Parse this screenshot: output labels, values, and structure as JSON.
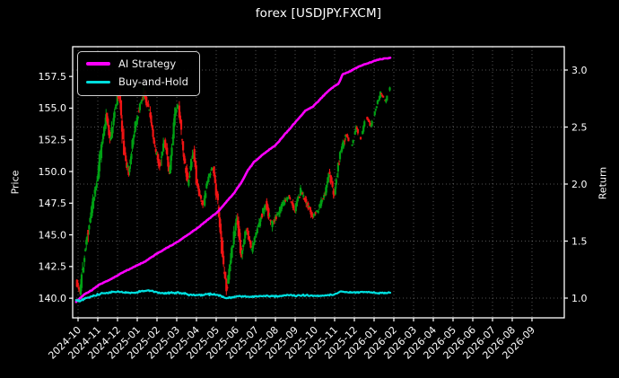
{
  "title": "forex [USDJPY.FXCM]",
  "legend": {
    "items": [
      {
        "label": "AI Strategy",
        "color": "#ff00ff"
      },
      {
        "label": "Buy-and-Hold",
        "color": "#00dede"
      }
    ]
  },
  "colors": {
    "background": "#000000",
    "text": "#ffffff",
    "grid": "rgba(255,255,255,0.32)",
    "spine": "#ffffff",
    "candle_up": "#00a014",
    "candle_down": "#f01414",
    "ai_strategy": "#ff00ff",
    "buy_and_hold": "#00dede"
  },
  "chart_data": {
    "type": "mixed",
    "title": "forex [USDJPY.FXCM]",
    "grid": {
      "vertical": "months",
      "horizontal_axis": "right",
      "style": "dotted"
    },
    "x_axis": {
      "unit": "month (0 = 2024-10)",
      "range": [
        -0.2727,
        24.6364
      ],
      "tick_values": [
        0,
        1,
        2,
        3,
        4,
        5,
        6,
        7,
        8,
        9,
        10,
        11,
        12,
        13,
        14,
        15,
        16,
        17,
        18,
        19,
        20,
        21,
        22,
        23
      ],
      "tick_labels": [
        "2024-10",
        "2024-11",
        "2024-12",
        "2025-01",
        "2025-02",
        "2025-03",
        "2025-04",
        "2025-05",
        "2025-06",
        "2025-07",
        "2025-08",
        "2025-09",
        "2025-10",
        "2025-11",
        "2025-12",
        "2026-01",
        "2026-02",
        "2026-03",
        "2026-04",
        "2026-05",
        "2026-06",
        "2026-07",
        "2026-08",
        "2026-09"
      ]
    },
    "left_axis": {
      "label": "Price",
      "range": [
        138.45,
        159.85
      ],
      "tick_values": [
        140.0,
        142.5,
        145.0,
        147.5,
        150.0,
        152.5,
        155.0,
        157.5
      ],
      "tick_labels": [
        "140.0",
        "142.5",
        "145.0",
        "147.5",
        "150.0",
        "152.5",
        "155.0",
        "157.5"
      ]
    },
    "right_axis": {
      "label": "Return",
      "range": [
        0.8268,
        3.2047
      ],
      "tick_values": [
        1.0,
        1.5,
        2.0,
        2.5,
        3.0
      ],
      "tick_labels": [
        "1.0",
        "1.5",
        "2.0",
        "2.5",
        "3.0"
      ]
    },
    "series": [
      {
        "name": "AI Strategy",
        "type": "line",
        "axis": "right",
        "color": "#ff00ff",
        "width": 2.6,
        "points": [
          [
            -0.1,
            0.97
          ],
          [
            0.3,
            1.03
          ],
          [
            0.7,
            1.07
          ],
          [
            1.1,
            1.12
          ],
          [
            1.6,
            1.16
          ],
          [
            2.2,
            1.22
          ],
          [
            2.8,
            1.27
          ],
          [
            3.4,
            1.32
          ],
          [
            3.9,
            1.38
          ],
          [
            4.5,
            1.44
          ],
          [
            5.1,
            1.5
          ],
          [
            5.6,
            1.56
          ],
          [
            6.1,
            1.62
          ],
          [
            6.6,
            1.69
          ],
          [
            7.1,
            1.76
          ],
          [
            7.5,
            1.84
          ],
          [
            7.9,
            1.92
          ],
          [
            8.3,
            2.02
          ],
          [
            8.6,
            2.12
          ],
          [
            8.9,
            2.19
          ],
          [
            9.3,
            2.25
          ],
          [
            9.6,
            2.29
          ],
          [
            10.0,
            2.34
          ],
          [
            10.4,
            2.42
          ],
          [
            10.8,
            2.5
          ],
          [
            11.2,
            2.58
          ],
          [
            11.5,
            2.64
          ],
          [
            11.9,
            2.68
          ],
          [
            12.3,
            2.75
          ],
          [
            12.7,
            2.82
          ],
          [
            13.0,
            2.86
          ],
          [
            13.2,
            2.88
          ],
          [
            13.4,
            2.96
          ],
          [
            13.8,
            2.99
          ],
          [
            14.2,
            3.03
          ],
          [
            14.7,
            3.06
          ],
          [
            15.2,
            3.09
          ],
          [
            15.85,
            3.11
          ]
        ],
        "jitter": 0.003
      },
      {
        "name": "Buy-and-Hold",
        "type": "line",
        "axis": "right",
        "color": "#00dede",
        "width": 2.2,
        "points": [
          [
            -0.1,
            0.985
          ],
          [
            0.1,
            0.972
          ],
          [
            0.4,
            1.0
          ],
          [
            0.8,
            1.02
          ],
          [
            1.2,
            1.04
          ],
          [
            1.6,
            1.05
          ],
          [
            2.0,
            1.058
          ],
          [
            2.4,
            1.05
          ],
          [
            2.8,
            1.045
          ],
          [
            3.2,
            1.06
          ],
          [
            3.6,
            1.065
          ],
          [
            4.0,
            1.05
          ],
          [
            4.4,
            1.04
          ],
          [
            4.8,
            1.05
          ],
          [
            5.2,
            1.045
          ],
          [
            5.6,
            1.03
          ],
          [
            6.0,
            1.025
          ],
          [
            6.4,
            1.03
          ],
          [
            6.8,
            1.035
          ],
          [
            7.2,
            1.02
          ],
          [
            7.5,
            0.997
          ],
          [
            7.8,
            1.005
          ],
          [
            8.2,
            1.02
          ],
          [
            8.6,
            1.012
          ],
          [
            9.0,
            1.016
          ],
          [
            9.4,
            1.02
          ],
          [
            9.8,
            1.016
          ],
          [
            10.2,
            1.02
          ],
          [
            10.6,
            1.025
          ],
          [
            11.0,
            1.02
          ],
          [
            11.4,
            1.026
          ],
          [
            11.8,
            1.02
          ],
          [
            12.2,
            1.02
          ],
          [
            12.6,
            1.026
          ],
          [
            13.0,
            1.03
          ],
          [
            13.3,
            1.058
          ],
          [
            13.7,
            1.05
          ],
          [
            14.1,
            1.05
          ],
          [
            14.5,
            1.052
          ],
          [
            14.9,
            1.048
          ],
          [
            15.3,
            1.048
          ],
          [
            15.85,
            1.046
          ]
        ],
        "jitter": 0.007
      },
      {
        "name": "USDJPY price",
        "type": "candles",
        "axis": "left",
        "up_color": "#00a014",
        "down_color": "#f01414",
        "bars": 334,
        "start": -0.08,
        "end": 15.82,
        "seed": 13,
        "base_vol": 0.3,
        "slope_vol": 0.04,
        "max_vol": 0.9,
        "sparse_after": 13.55,
        "sparse_skip": 0.45,
        "anchors": [
          [
            -0.1,
            141.6
          ],
          [
            0.1,
            140.4
          ],
          [
            0.4,
            144.0
          ],
          [
            0.7,
            147.0
          ],
          [
            1.0,
            149.5
          ],
          [
            1.2,
            152.0
          ],
          [
            1.45,
            154.5
          ],
          [
            1.65,
            152.5
          ],
          [
            1.9,
            155.0
          ],
          [
            2.1,
            156.3
          ],
          [
            2.35,
            151.5
          ],
          [
            2.6,
            149.8
          ],
          [
            2.8,
            152.5
          ],
          [
            3.1,
            155.0
          ],
          [
            3.35,
            156.3
          ],
          [
            3.65,
            154.5
          ],
          [
            3.9,
            152.0
          ],
          [
            4.15,
            150.3
          ],
          [
            4.4,
            152.5
          ],
          [
            4.65,
            150.0
          ],
          [
            4.9,
            154.5
          ],
          [
            5.1,
            155.2
          ],
          [
            5.35,
            151.5
          ],
          [
            5.6,
            149.0
          ],
          [
            5.85,
            151.5
          ],
          [
            6.1,
            148.5
          ],
          [
            6.35,
            147.2
          ],
          [
            6.6,
            149.5
          ],
          [
            6.85,
            150.5
          ],
          [
            7.1,
            147.5
          ],
          [
            7.35,
            143.0
          ],
          [
            7.55,
            140.6
          ],
          [
            7.8,
            143.5
          ],
          [
            8.05,
            146.5
          ],
          [
            8.3,
            143.5
          ],
          [
            8.55,
            145.5
          ],
          [
            8.8,
            143.8
          ],
          [
            9.05,
            145.2
          ],
          [
            9.3,
            146.5
          ],
          [
            9.55,
            147.5
          ],
          [
            9.8,
            145.8
          ],
          [
            10.1,
            146.5
          ],
          [
            10.4,
            147.5
          ],
          [
            10.7,
            148.0
          ],
          [
            11.0,
            147.0
          ],
          [
            11.3,
            148.5
          ],
          [
            11.6,
            147.5
          ],
          [
            11.9,
            146.5
          ],
          [
            12.2,
            147.0
          ],
          [
            12.5,
            148.2
          ],
          [
            12.75,
            150.0
          ],
          [
            13.0,
            148.2
          ],
          [
            13.3,
            151.5
          ],
          [
            13.6,
            153.0
          ],
          [
            13.85,
            151.8
          ],
          [
            14.1,
            153.5
          ],
          [
            14.35,
            152.5
          ],
          [
            14.6,
            154.5
          ],
          [
            14.85,
            153.5
          ],
          [
            15.1,
            155.0
          ],
          [
            15.35,
            156.2
          ],
          [
            15.6,
            155.5
          ],
          [
            15.85,
            156.8
          ]
        ]
      }
    ]
  }
}
